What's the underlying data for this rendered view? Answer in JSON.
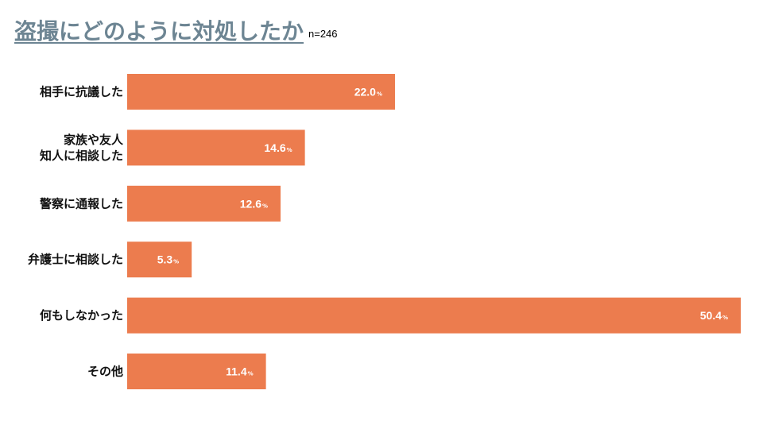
{
  "header": {
    "title": "盗撮にどのように対処したか",
    "sample_size": "n=246"
  },
  "chart_data": {
    "type": "bar",
    "orientation": "horizontal",
    "categories": [
      [
        "相手に抗議した"
      ],
      [
        "家族や友人",
        "知人に相談した"
      ],
      [
        "警察に通報した"
      ],
      [
        "弁護士に相談した"
      ],
      [
        "何もしなかった"
      ],
      [
        "その他"
      ]
    ],
    "values": [
      22.0,
      14.6,
      12.6,
      5.3,
      50.4,
      11.4
    ],
    "value_unit": "%",
    "xlim": [
      0,
      50.4
    ],
    "bar_color": "#ec7c4e",
    "label_color": "#ffffff",
    "grid": false,
    "legend": "none"
  }
}
